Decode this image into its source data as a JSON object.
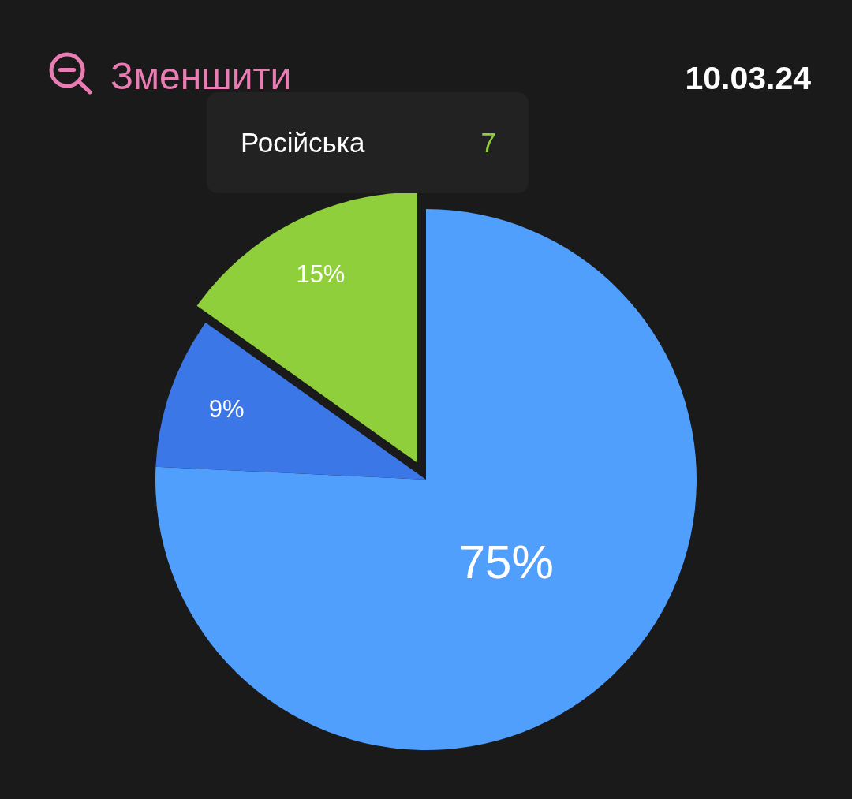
{
  "chart_data": {
    "type": "pie",
    "categories": [
      null,
      null,
      "Російська"
    ],
    "values": [
      75,
      9,
      15
    ],
    "colors": [
      "#519ffd",
      "#3c77e8",
      "#8fcf3c"
    ],
    "value_labels": [
      "75%",
      "9%",
      "15%"
    ],
    "annotations": [
      "Зменшити",
      "10.03.24",
      {
        "text": "7",
        "x": "Російська"
      }
    ]
  }
}
